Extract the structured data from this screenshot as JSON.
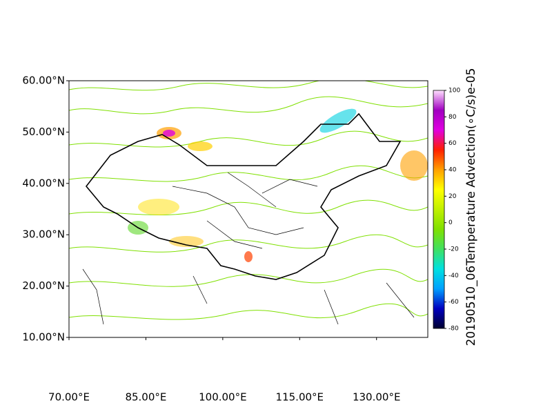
{
  "chart_data": {
    "type": "map",
    "colorbar_label": "20190510_06Temperature Advection(∘C/s)e-05",
    "xlim": [
      70,
      140
    ],
    "ylim": [
      10,
      60
    ],
    "xticks": [
      {
        "value": 70,
        "label": "70.00°E"
      },
      {
        "value": 85,
        "label": "85.00°E"
      },
      {
        "value": 100,
        "label": "100.00°E"
      },
      {
        "value": 115,
        "label": "115.00°E"
      },
      {
        "value": 130,
        "label": "130.00°E"
      }
    ],
    "yticks": [
      {
        "value": 10,
        "label": "10.00°N"
      },
      {
        "value": 20,
        "label": "20.00°N"
      },
      {
        "value": 30,
        "label": "30.00°N"
      },
      {
        "value": 40,
        "label": "40.00°N"
      },
      {
        "value": 50,
        "label": "50.00°N"
      },
      {
        "value": 60,
        "label": "60.00°N"
      }
    ],
    "clim": [
      -80,
      100
    ],
    "cticks": [
      100,
      80,
      60,
      40,
      20,
      0,
      -20,
      -40,
      -60,
      -80
    ],
    "colormap": [
      "#000030",
      "#0000c0",
      "#00a0ff",
      "#00e0e0",
      "#40e060",
      "#80e000",
      "#c0f000",
      "#ffff00",
      "#ffa000",
      "#ff2000",
      "#e000e0",
      "#a000c0",
      "#ffe0ff"
    ]
  }
}
